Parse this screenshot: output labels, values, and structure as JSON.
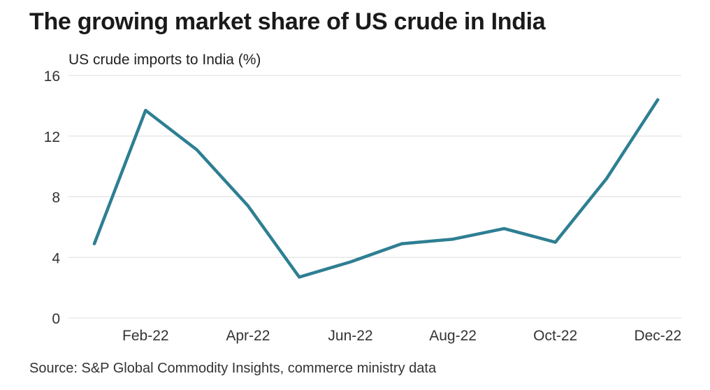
{
  "title": "The growing market share of US crude in India",
  "source": "Source: S&P Global Commodity Insights, commerce ministry data",
  "chart_data": {
    "type": "line",
    "ylabel": "US crude imports to India (%)",
    "xlabel": "",
    "ylim": [
      0,
      16
    ],
    "yticks": [
      0,
      4,
      8,
      12,
      16
    ],
    "x": [
      "Jan-22",
      "Feb-22",
      "Mar-22",
      "Apr-22",
      "May-22",
      "Jun-22",
      "Jul-22",
      "Aug-22",
      "Sep-22",
      "Oct-22",
      "Nov-22",
      "Dec-22"
    ],
    "xtick_labels": [
      "Feb-22",
      "Apr-22",
      "Jun-22",
      "Aug-22",
      "Oct-22",
      "Dec-22"
    ],
    "series": [
      {
        "values": [
          4.9,
          13.7,
          11.1,
          7.4,
          2.7,
          3.7,
          4.9,
          5.2,
          5.9,
          5.0,
          9.2,
          14.4
        ]
      }
    ],
    "grid": true,
    "color": "#2e7f92"
  }
}
